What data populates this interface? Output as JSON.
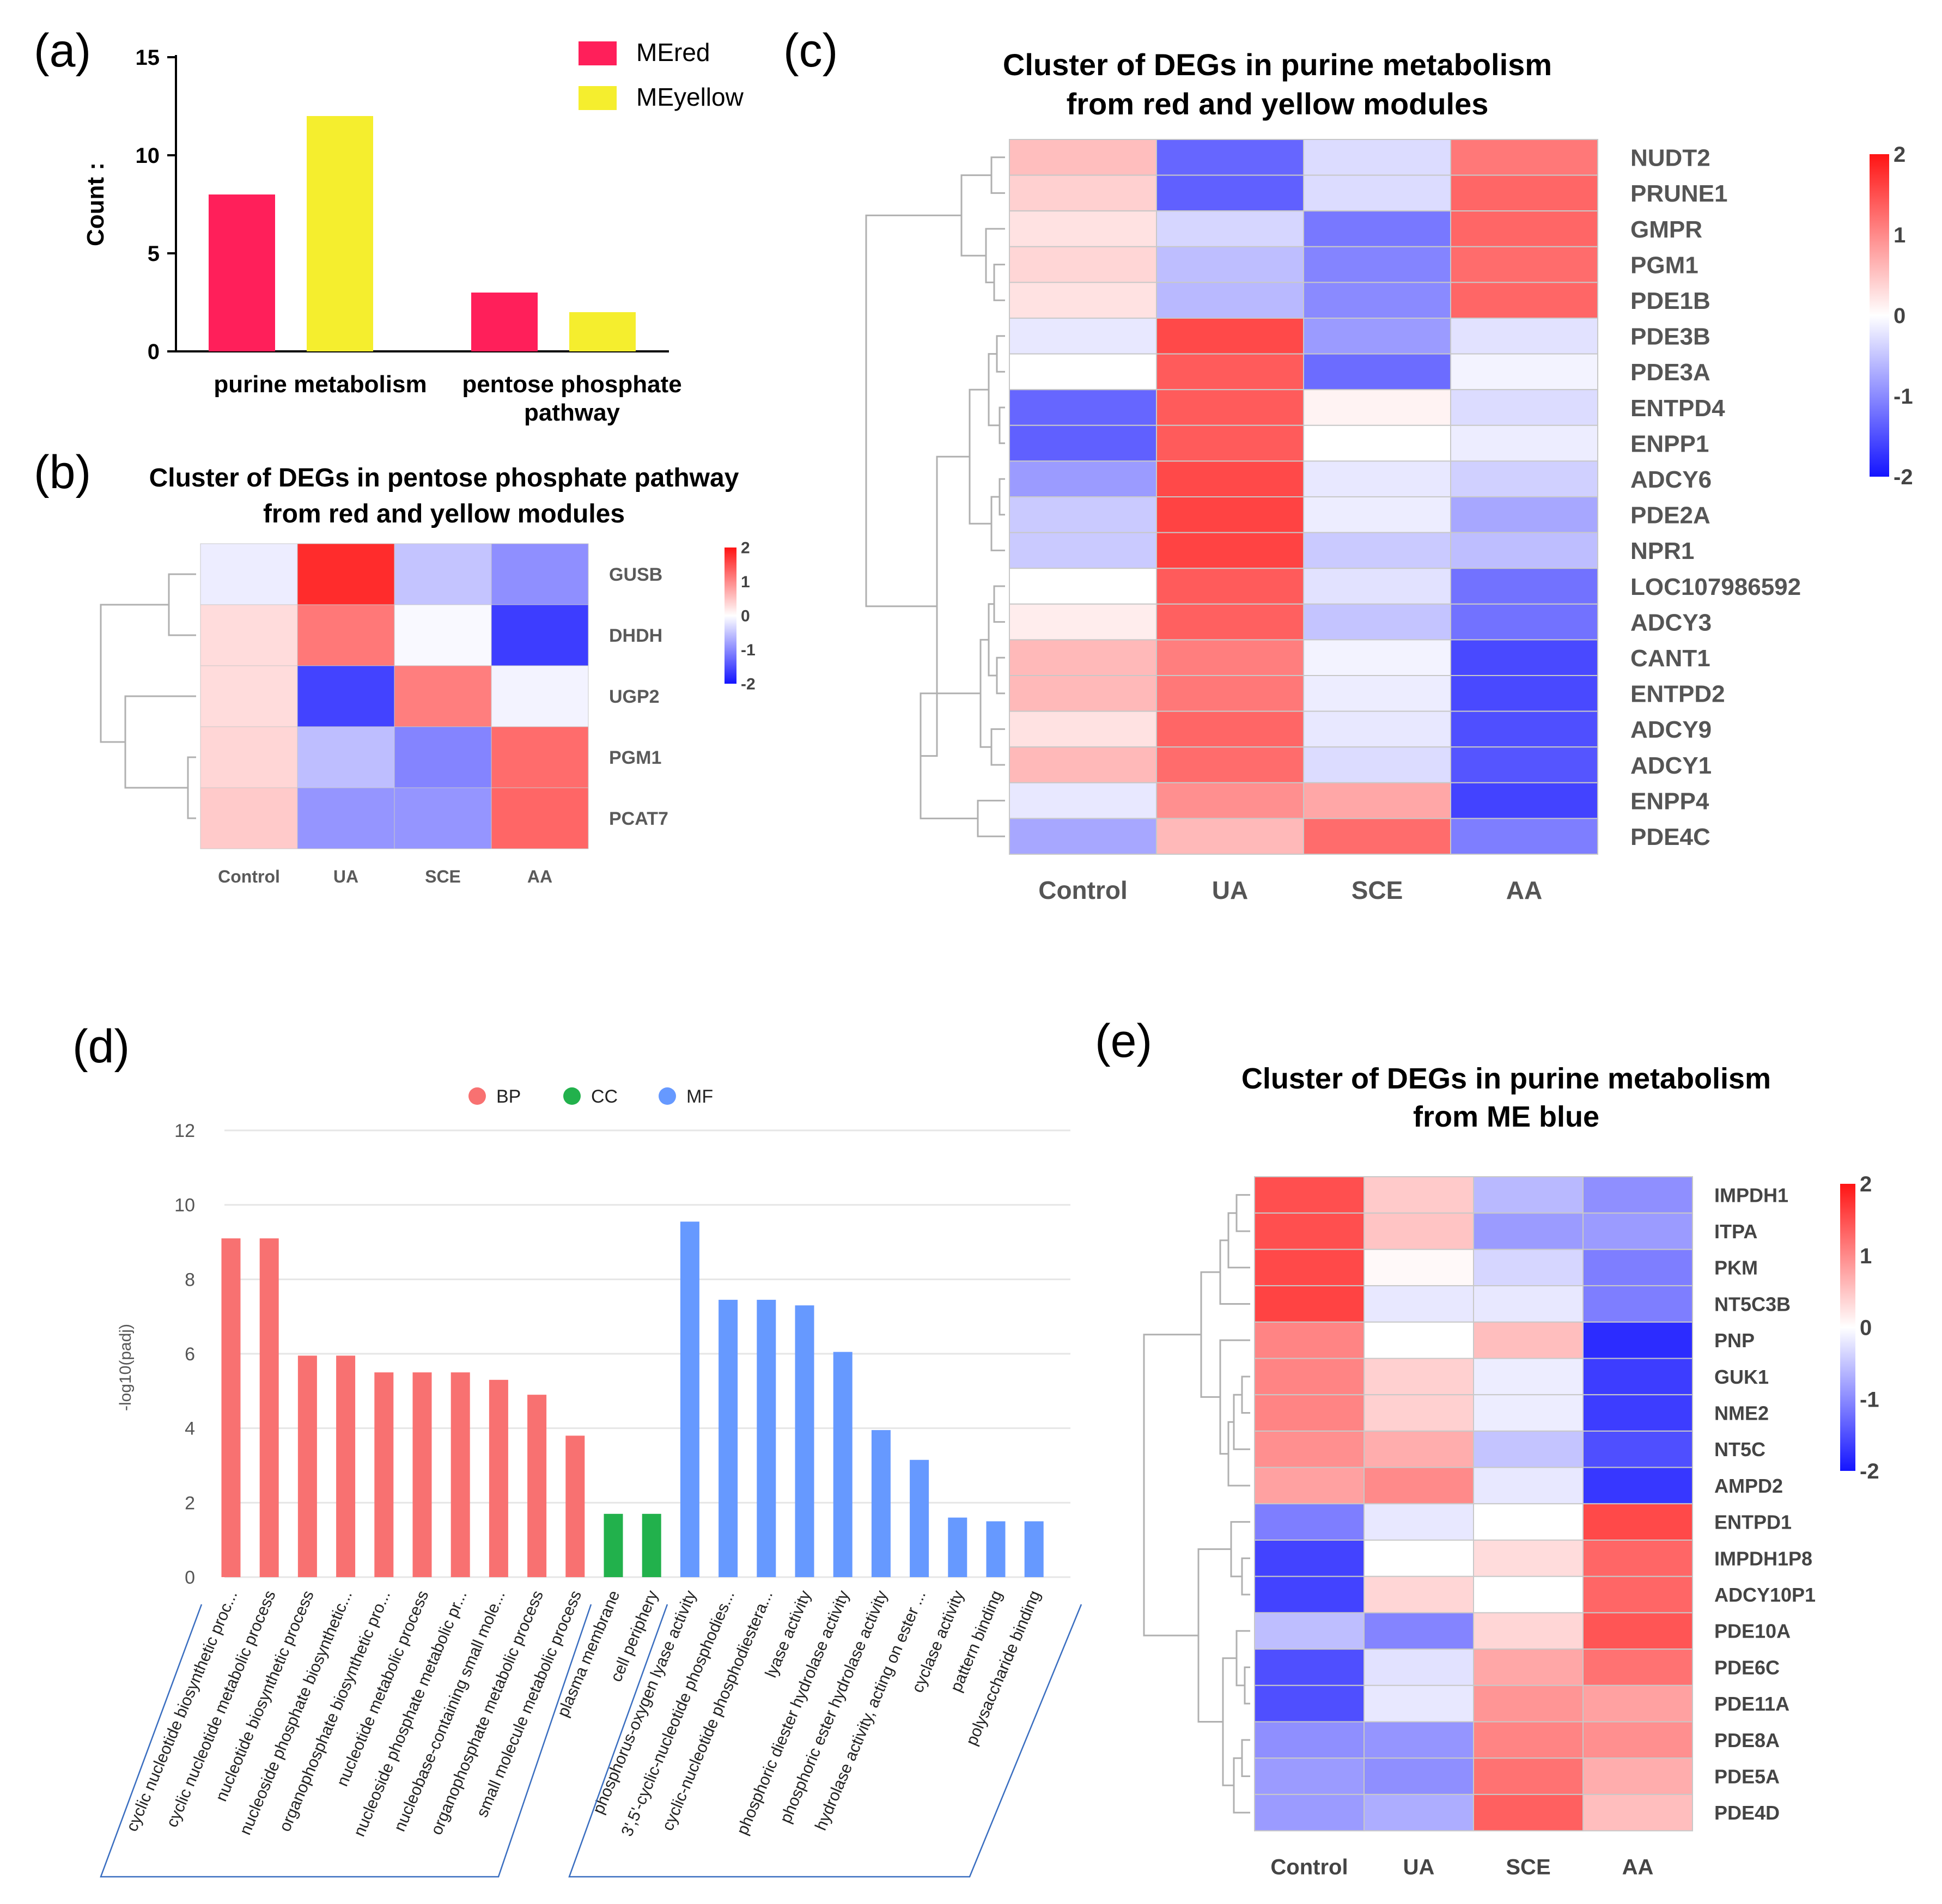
{
  "chart_data": [
    {
      "panel": "(a)",
      "type": "bar",
      "ylabel": "Count :",
      "ylim": [
        0,
        15
      ],
      "yticks": [
        "0",
        "5",
        "10",
        "15"
      ],
      "categories": [
        {
          "lines": [
            "purine metabolism"
          ]
        },
        {
          "lines": [
            "pentose phosphate",
            "pathway"
          ]
        }
      ],
      "series": [
        {
          "name": "MEred",
          "color": "#FF1F5A",
          "values": [
            8,
            3
          ]
        },
        {
          "name": "MEyellow",
          "color": "#F5EE2E",
          "values": [
            12,
            2
          ]
        }
      ]
    },
    {
      "panel": "(b)",
      "type": "heatmap",
      "title_lines": [
        "Cluster of DEGs in pentose phosphate pathway",
        "from red and yellow modules"
      ],
      "columns": [
        "Control",
        "UA",
        "SCE",
        "AA"
      ],
      "rows": [
        "GUSB",
        "DHDH",
        "UGP2",
        "PGM1",
        "PCAT7"
      ],
      "values": [
        [
          -0.15,
          1.8,
          -0.5,
          -0.95
        ],
        [
          0.3,
          1.15,
          -0.05,
          -1.65
        ],
        [
          0.3,
          -1.6,
          1.1,
          -0.1
        ],
        [
          0.35,
          -0.55,
          -1.05,
          1.25
        ],
        [
          0.45,
          -0.9,
          -0.9,
          1.3
        ]
      ],
      "scale_ticks": [
        "2",
        "1",
        "0",
        "-1",
        "-2"
      ]
    },
    {
      "panel": "(c)",
      "type": "heatmap",
      "title_lines": [
        "Cluster of DEGs in purine metabolism",
        "from red and yellow modules"
      ],
      "columns": [
        "Control",
        "UA",
        "SCE",
        "AA"
      ],
      "rows": [
        "NUDT2",
        "PRUNE1",
        "GMPR",
        "PGM1",
        "PDE1B",
        "PDE3B",
        "PDE3A",
        "ENTPD4",
        "ENPP1",
        "ADCY6",
        "PDE2A",
        "NPR1",
        "LOC107986592",
        "ADCY3",
        "CANT1",
        "ENTPD2",
        "ADCY9",
        "ADCY1",
        "ENPP4",
        "PDE4C"
      ],
      "values": [
        [
          0.55,
          -1.3,
          -0.3,
          1.15
        ],
        [
          0.4,
          -1.35,
          -0.3,
          1.3
        ],
        [
          0.25,
          -0.35,
          -1.15,
          1.3
        ],
        [
          0.35,
          -0.55,
          -1.05,
          1.25
        ],
        [
          0.25,
          -0.6,
          -1.0,
          1.3
        ],
        [
          -0.2,
          1.55,
          -0.85,
          -0.25
        ],
        [
          0.0,
          1.4,
          -1.25,
          -0.1
        ],
        [
          -1.3,
          1.4,
          0.1,
          -0.3
        ],
        [
          -1.35,
          1.4,
          0.0,
          -0.15
        ],
        [
          -0.85,
          1.55,
          -0.2,
          -0.4
        ],
        [
          -0.45,
          1.6,
          -0.15,
          -0.75
        ],
        [
          -0.45,
          1.6,
          -0.45,
          -0.55
        ],
        [
          0.0,
          1.4,
          -0.25,
          -1.2
        ],
        [
          0.15,
          1.35,
          -0.5,
          -1.2
        ],
        [
          0.6,
          1.1,
          -0.1,
          -1.55
        ],
        [
          0.6,
          1.15,
          -0.15,
          -1.55
        ],
        [
          0.25,
          1.3,
          -0.2,
          -1.5
        ],
        [
          0.6,
          1.25,
          -0.3,
          -1.45
        ],
        [
          -0.2,
          0.95,
          0.75,
          -1.6
        ],
        [
          -0.75,
          0.6,
          1.25,
          -1.1
        ]
      ],
      "scale_ticks": [
        "2",
        "1",
        "0",
        "-1",
        "-2"
      ]
    },
    {
      "panel": "(d)",
      "type": "bar",
      "ylabel": "-log10(padj)",
      "ylim": [
        0,
        12
      ],
      "yticks": [
        "0",
        "2",
        "4",
        "6",
        "8",
        "10",
        "12"
      ],
      "legend": [
        {
          "name": "BP",
          "color": "#F87171"
        },
        {
          "name": "CC",
          "color": "#22B14C"
        },
        {
          "name": "MF",
          "color": "#6699FF"
        }
      ],
      "categories": [
        "cyclic nucleotide biosynthetic proc...",
        "cyclic nucleotide metabolic process",
        "nucleotide biosynthetic process",
        "nucleoside phosphate biosynthetic...",
        "organophosphate biosynthetic pro...",
        "nucleotide metabolic process",
        "nucleoside phosphate metabolic pr...",
        "nucleobase-containing small mole...",
        "organophosphate metabolic process",
        "small molecule metabolic process",
        "plasma membrane",
        "cell periphery",
        "phosphorus-oxygen lyase activity",
        "3',5'-cyclic-nucleotide phosphodies...",
        "cyclic-nucleotide phosphodiestera...",
        "lyase activity",
        "phosphoric diester hydrolase activity",
        "phosphoric ester hydrolase activity",
        "hydrolase activity, acting on ester ...",
        "cyclase activity",
        "pattern binding",
        "polysaccharide binding"
      ],
      "groups": [
        "BP",
        "BP",
        "BP",
        "BP",
        "BP",
        "BP",
        "BP",
        "BP",
        "BP",
        "BP",
        "CC",
        "CC",
        "MF",
        "MF",
        "MF",
        "MF",
        "MF",
        "MF",
        "MF",
        "MF",
        "MF",
        "MF"
      ],
      "values": [
        9.1,
        9.1,
        5.95,
        5.95,
        5.5,
        5.5,
        5.5,
        5.3,
        4.9,
        3.8,
        1.7,
        1.7,
        9.55,
        7.45,
        7.45,
        7.3,
        6.05,
        3.95,
        3.15,
        1.6,
        1.5,
        1.5
      ]
    },
    {
      "panel": "(e)",
      "type": "heatmap",
      "title_lines": [
        "Cluster of DEGs in purine metabolism",
        "from ME blue"
      ],
      "columns": [
        "Control",
        "UA",
        "SCE",
        "AA"
      ],
      "rows": [
        "IMPDH1",
        "ITPA",
        "PKM",
        "NT5C3B",
        "PNP",
        "GUK1",
        "NME2",
        "NT5C",
        "AMPD2",
        "ENTPD1",
        "IMPDH1P8",
        "ADCY10P1",
        "PDE10A",
        "PDE6C",
        "PDE11A",
        "PDE8A",
        "PDE5A",
        "PDE4D"
      ],
      "values": [
        [
          1.5,
          0.45,
          -0.6,
          -0.95
        ],
        [
          1.5,
          0.5,
          -0.85,
          -0.85
        ],
        [
          1.55,
          0.05,
          -0.35,
          -1.1
        ],
        [
          1.6,
          -0.2,
          -0.2,
          -1.1
        ],
        [
          1.05,
          0.0,
          0.55,
          -1.8
        ],
        [
          1.05,
          0.4,
          -0.15,
          -1.65
        ],
        [
          1.05,
          0.4,
          -0.15,
          -1.65
        ],
        [
          0.95,
          0.7,
          -0.5,
          -1.5
        ],
        [
          0.8,
          1.0,
          -0.2,
          -1.7
        ],
        [
          -1.1,
          -0.2,
          0.0,
          1.55
        ],
        [
          -1.6,
          0.0,
          0.3,
          1.3
        ],
        [
          -1.6,
          0.35,
          0.0,
          1.3
        ],
        [
          -0.55,
          -1.05,
          0.35,
          1.45
        ],
        [
          -1.5,
          -0.25,
          0.75,
          1.2
        ],
        [
          -1.5,
          -0.2,
          0.9,
          0.8
        ],
        [
          -0.95,
          -0.9,
          1.05,
          0.95
        ],
        [
          -0.85,
          -0.95,
          1.2,
          0.7
        ],
        [
          -0.85,
          -0.7,
          1.35,
          0.55
        ]
      ],
      "scale_ticks": [
        "2",
        "1",
        "0",
        "-1",
        "-2"
      ]
    }
  ],
  "panel_labels": {
    "a": "(a)",
    "b": "(b)",
    "c": "(c)",
    "d": "(d)",
    "e": "(e)"
  }
}
